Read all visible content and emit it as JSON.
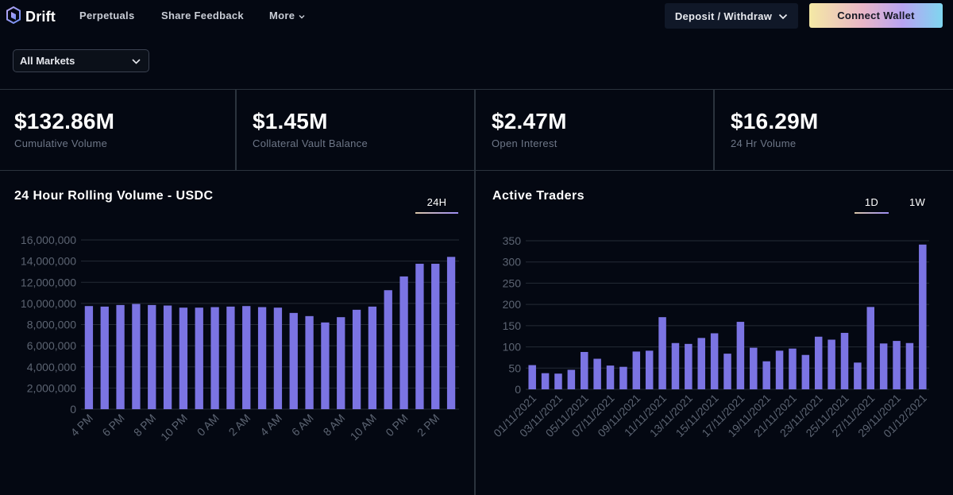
{
  "nav": {
    "brand": "Drift",
    "links": [
      "Perpetuals",
      "Share Feedback",
      "More"
    ],
    "deposit_label": "Deposit / Withdraw",
    "connect_label": "Connect Wallet"
  },
  "filter": {
    "market_selected": "All Markets"
  },
  "stats": [
    {
      "value": "$132.86M",
      "label": "Cumulative Volume"
    },
    {
      "value": "$1.45M",
      "label": "Collateral Vault Balance"
    },
    {
      "value": "$2.47M",
      "label": "Open Interest"
    },
    {
      "value": "$16.29M",
      "label": "24 Hr Volume"
    }
  ],
  "volume_panel": {
    "title": "24 Hour Rolling Volume - USDC",
    "tabs": [
      "24H"
    ],
    "active_tab": "24H"
  },
  "traders_panel": {
    "title": "Active Traders",
    "tabs": [
      "1D",
      "1W"
    ],
    "active_tab": "1D"
  },
  "colors": {
    "bar": "#7b74e3",
    "grid": "#252b36",
    "tick": "#5c6472",
    "background": "#040812"
  },
  "chart_data": [
    {
      "type": "bar",
      "title": "24 Hour Rolling Volume - USDC",
      "ylim": [
        0,
        16000000
      ],
      "yticks": [
        0,
        2000000,
        4000000,
        6000000,
        8000000,
        10000000,
        12000000,
        14000000,
        16000000
      ],
      "ytick_labels": [
        "0",
        "2,000,000",
        "4,000,000",
        "6,000,000",
        "8,000,000",
        "10,000,000",
        "12,000,000",
        "14,000,000",
        "16,000,000"
      ],
      "tick_labels": [
        "4 PM",
        "6 PM",
        "8 PM",
        "10 PM",
        "0 AM",
        "2 AM",
        "4 AM",
        "6 AM",
        "8 AM",
        "10 AM",
        "0 PM",
        "2 PM"
      ],
      "values": [
        9750000,
        9700000,
        9850000,
        9950000,
        9850000,
        9800000,
        9600000,
        9600000,
        9650000,
        9700000,
        9750000,
        9650000,
        9600000,
        9100000,
        8800000,
        8200000,
        8700000,
        9400000,
        9700000,
        11250000,
        12550000,
        13750000,
        13750000,
        14400000
      ]
    },
    {
      "type": "bar",
      "title": "Active Traders",
      "ylim": [
        0,
        350
      ],
      "yticks": [
        0,
        50,
        100,
        150,
        200,
        250,
        300,
        350
      ],
      "ytick_labels": [
        "0",
        "50",
        "100",
        "150",
        "200",
        "250",
        "300",
        "350"
      ],
      "tick_labels": [
        "01/11/2021",
        "03/11/2021",
        "05/11/2021",
        "07/11/2021",
        "09/11/2021",
        "11/11/2021",
        "13/11/2021",
        "15/11/2021",
        "17/11/2021",
        "19/11/2021",
        "21/11/2021",
        "23/11/2021",
        "25/11/2021",
        "27/11/2021",
        "29/11/2021",
        "01/12/2021"
      ],
      "values": [
        57,
        38,
        37,
        46,
        88,
        72,
        56,
        53,
        89,
        91,
        170,
        109,
        107,
        121,
        132,
        84,
        159,
        98,
        66,
        91,
        96,
        81,
        124,
        117,
        133,
        63,
        194,
        108,
        114,
        109,
        341
      ]
    }
  ]
}
